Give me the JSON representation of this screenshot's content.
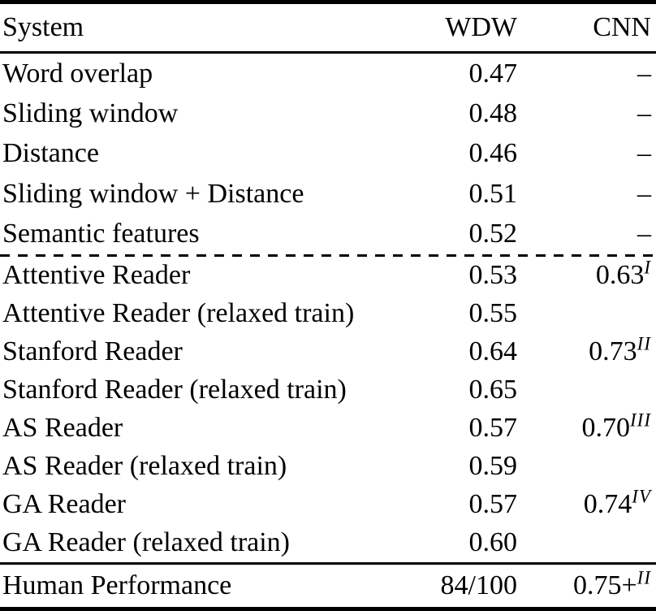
{
  "page": {
    "background_color": "#ffffff",
    "text_color": "#000000"
  },
  "table": {
    "header": {
      "system": "System",
      "wdw": "WDW",
      "cnn": "CNN"
    },
    "missing_marker": "–",
    "sections": {
      "baselines": [
        {
          "system": "Word overlap",
          "wdw": "0.47",
          "cnn": "–",
          "cnn_sup": ""
        },
        {
          "system": "Sliding window",
          "wdw": "0.48",
          "cnn": "–",
          "cnn_sup": ""
        },
        {
          "system": "Distance",
          "wdw": "0.46",
          "cnn": "–",
          "cnn_sup": ""
        },
        {
          "system": "Sliding window + Distance",
          "wdw": "0.51",
          "cnn": "–",
          "cnn_sup": ""
        },
        {
          "system": "Semantic features",
          "wdw": "0.52",
          "cnn": "–",
          "cnn_sup": ""
        }
      ],
      "readers": [
        {
          "system": "Attentive Reader",
          "wdw": "0.53",
          "cnn": "0.63",
          "cnn_sup": "I"
        },
        {
          "system": "Attentive Reader (relaxed train)",
          "wdw": "0.55",
          "cnn": "",
          "cnn_sup": ""
        },
        {
          "system": "Stanford Reader",
          "wdw": "0.64",
          "cnn": "0.73",
          "cnn_sup": "II"
        },
        {
          "system": "Stanford Reader (relaxed train)",
          "wdw": "0.65",
          "cnn": "",
          "cnn_sup": ""
        },
        {
          "system": "AS Reader",
          "wdw": "0.57",
          "cnn": "0.70",
          "cnn_sup": "III"
        },
        {
          "system": "AS Reader (relaxed train)",
          "wdw": "0.59",
          "cnn": "",
          "cnn_sup": ""
        },
        {
          "system": "GA Reader",
          "wdw": "0.57",
          "cnn": "0.74",
          "cnn_sup": "IV"
        },
        {
          "system": "GA Reader (relaxed train)",
          "wdw": "0.60",
          "cnn": "",
          "cnn_sup": ""
        }
      ],
      "human": [
        {
          "system": "Human Performance",
          "wdw": "84/100",
          "cnn": "0.75+",
          "cnn_sup": "II"
        }
      ]
    }
  }
}
